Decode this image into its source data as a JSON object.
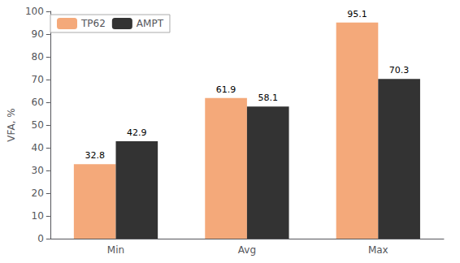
{
  "chart_data": {
    "type": "bar",
    "categories": [
      "Min",
      "Avg",
      "Max"
    ],
    "series": [
      {
        "name": "TP62",
        "color": "#F4A97A",
        "values": [
          32.8,
          61.9,
          95.1
        ]
      },
      {
        "name": "AMPT",
        "color": "#333333",
        "values": [
          42.9,
          58.1,
          70.3
        ]
      }
    ],
    "ylabel": "VFA, %",
    "ylim": [
      0,
      100
    ],
    "yticks": [
      0,
      10,
      20,
      30,
      40,
      50,
      60,
      70,
      80,
      90,
      100
    ],
    "data_labels": true,
    "legend": "upper left",
    "grid": false
  }
}
